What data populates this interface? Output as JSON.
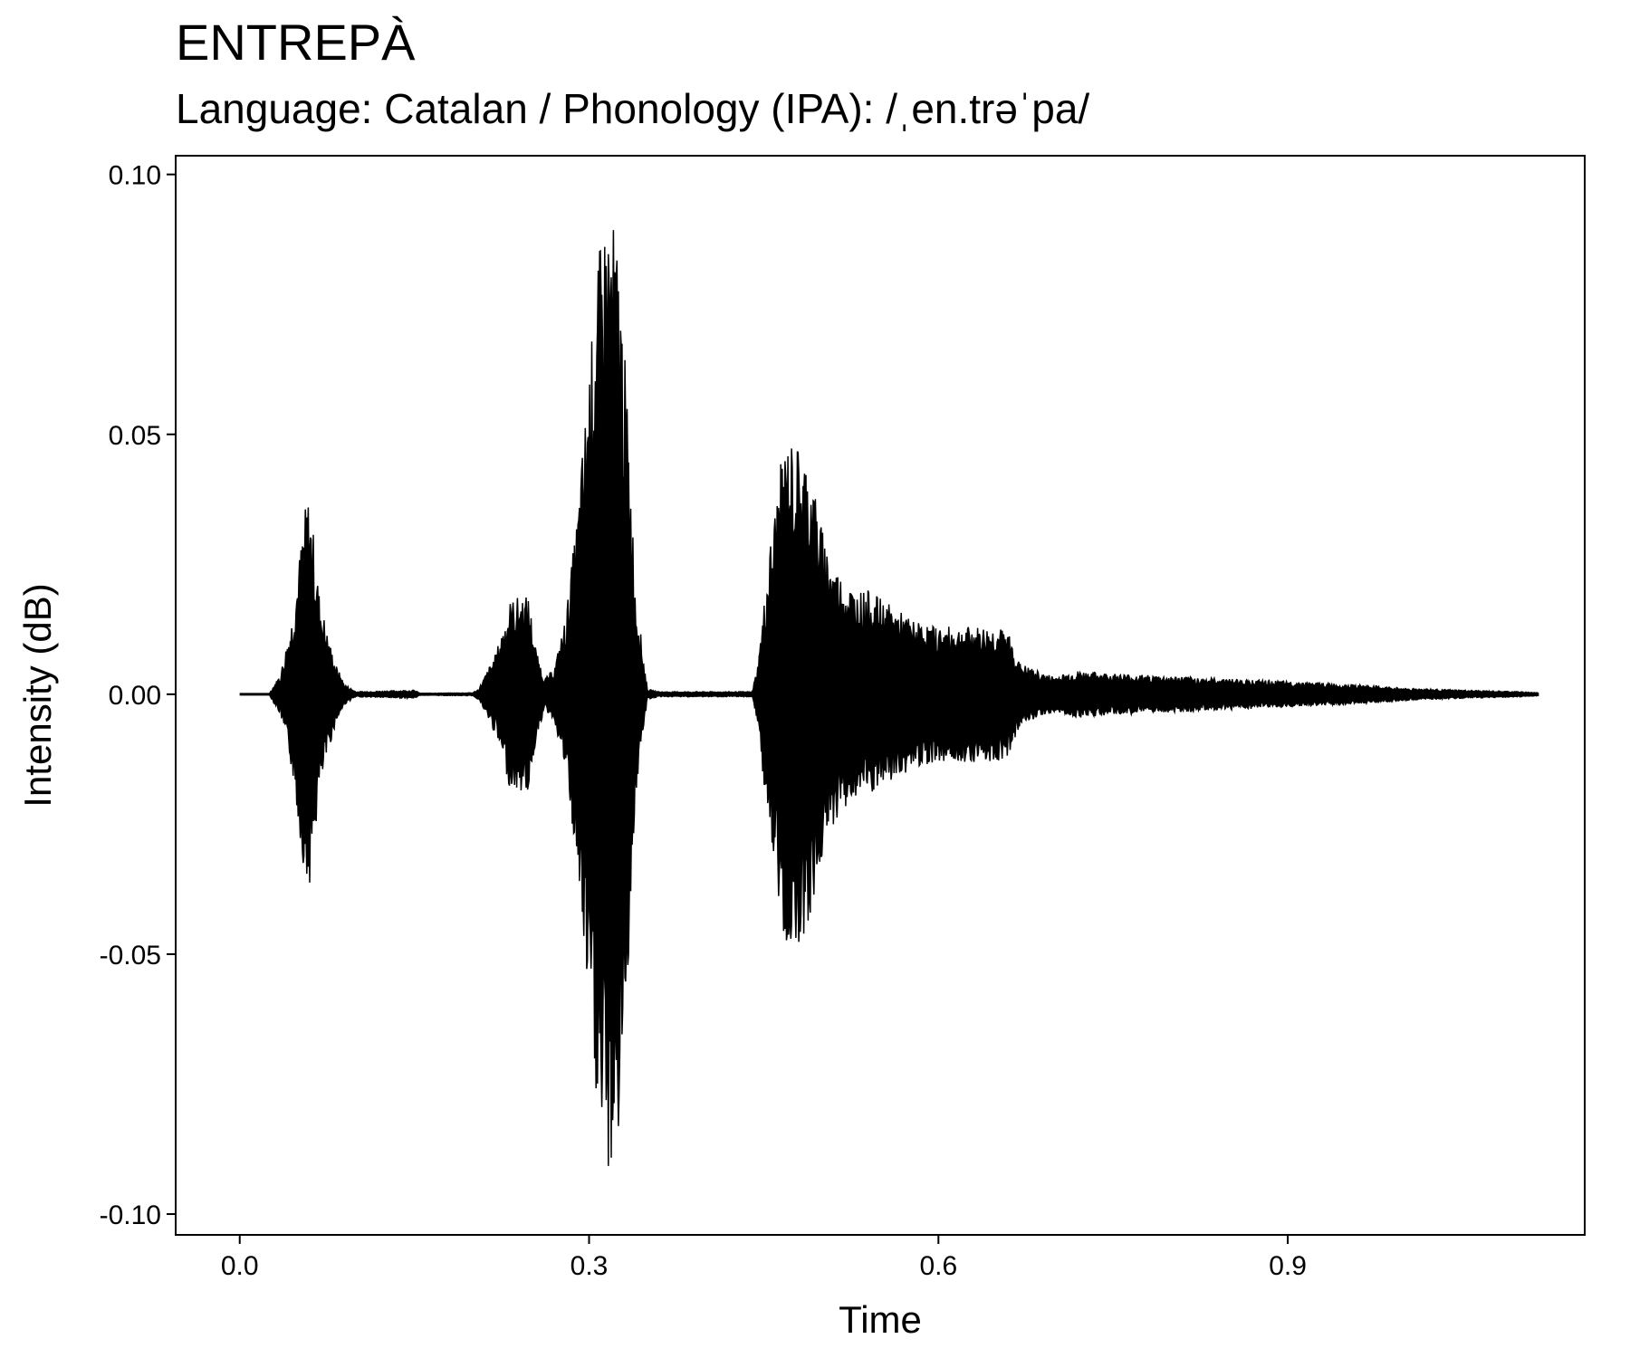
{
  "chart_data": {
    "type": "line",
    "title": "ENTREPÀ",
    "subtitle": "Language: Catalan / Phonology (IPA): /ˌen.trəˈpa/",
    "xlabel": "Time",
    "ylabel": "Intensity (dB)",
    "xlim": [
      -0.055,
      1.155
    ],
    "ylim": [
      -0.104,
      0.1036
    ],
    "x_ticks": [
      0.0,
      0.3,
      0.6,
      0.9
    ],
    "x_tick_labels": [
      "0.0",
      "0.3",
      "0.6",
      "0.9"
    ],
    "y_ticks": [
      -0.1,
      -0.05,
      0.0,
      0.05,
      0.1
    ],
    "y_tick_labels": [
      "-0.10",
      "-0.05",
      "0.00",
      "0.05",
      "0.10"
    ],
    "grid": false,
    "series": [
      {
        "color": "#000000",
        "x": [
          0.0,
          0.025,
          0.035,
          0.045,
          0.052,
          0.058,
          0.062,
          0.068,
          0.075,
          0.082,
          0.09,
          0.1,
          0.15,
          0.155,
          0.2,
          0.205,
          0.22,
          0.232,
          0.24,
          0.248,
          0.255,
          0.262,
          0.27,
          0.28,
          0.29,
          0.3,
          0.31,
          0.317,
          0.325,
          0.332,
          0.34,
          0.35,
          0.36,
          0.44,
          0.445,
          0.455,
          0.465,
          0.47,
          0.48,
          0.49,
          0.5,
          0.51,
          0.52,
          0.53,
          0.54,
          0.56,
          0.58,
          0.6,
          0.62,
          0.64,
          0.65,
          0.66,
          0.67,
          0.69,
          0.7,
          0.72,
          0.75,
          0.8,
          0.85,
          0.9,
          0.95,
          1.0,
          1.05,
          1.1,
          1.115
        ],
        "values": [
          0.0,
          0.0,
          0.004,
          0.015,
          0.028,
          0.039,
          0.034,
          0.02,
          0.012,
          0.006,
          0.002,
          0.0005,
          0.0008,
          0.0002,
          0.0003,
          0.001,
          0.008,
          0.018,
          0.019,
          0.019,
          0.008,
          0.003,
          0.005,
          0.015,
          0.035,
          0.063,
          0.088,
          0.094,
          0.087,
          0.06,
          0.02,
          0.001,
          0.0005,
          0.0005,
          0.006,
          0.028,
          0.045,
          0.049,
          0.048,
          0.044,
          0.032,
          0.025,
          0.022,
          0.02,
          0.02,
          0.017,
          0.014,
          0.013,
          0.013,
          0.013,
          0.013,
          0.012,
          0.006,
          0.004,
          0.0035,
          0.0045,
          0.004,
          0.0035,
          0.003,
          0.0025,
          0.002,
          0.0012,
          0.0008,
          0.0005,
          0.0003
        ]
      }
    ]
  }
}
